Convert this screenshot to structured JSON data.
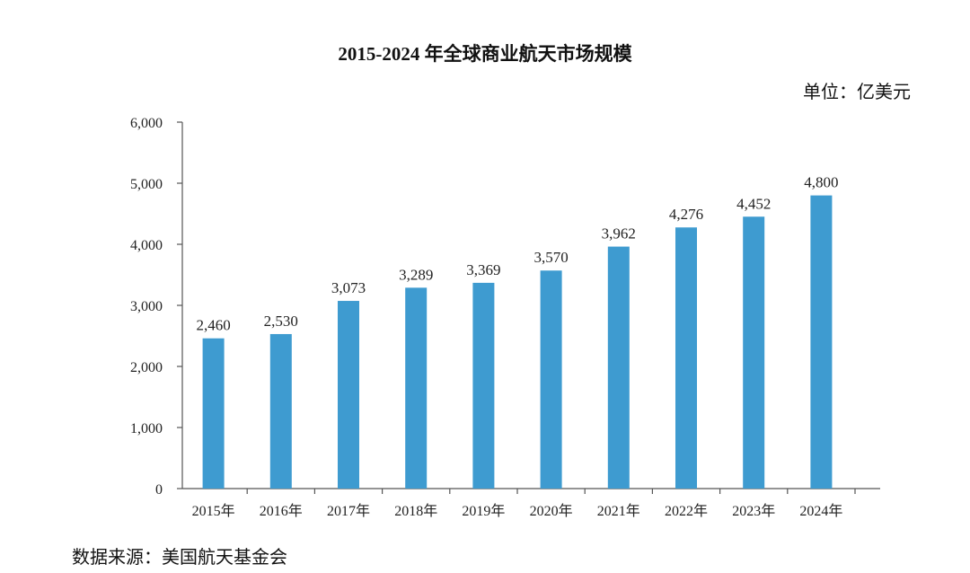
{
  "chart_data": {
    "type": "bar",
    "title": "2015-2024 年全球商业航天市场规模",
    "unit_label": "单位：亿美元",
    "source_label": "数据来源：美国航天基金会",
    "categories": [
      "2015年",
      "2016年",
      "2017年",
      "2018年",
      "2019年",
      "2020年",
      "2021年",
      "2022年",
      "2023年",
      "2024年"
    ],
    "values": [
      2460,
      2530,
      3073,
      3289,
      3369,
      3570,
      3962,
      4276,
      4452,
      4800
    ],
    "value_labels": [
      "2,460",
      "2,530",
      "3,073",
      "3,289",
      "3,369",
      "3,570",
      "3,962",
      "4,276",
      "4,452",
      "4,800"
    ],
    "yticks": [
      0,
      1000,
      2000,
      3000,
      4000,
      5000,
      6000
    ],
    "ytick_labels": [
      "0",
      "1,000",
      "2,000",
      "3,000",
      "4,000",
      "5,000",
      "6,000"
    ],
    "ylim": [
      0,
      6000
    ],
    "xlabel": "",
    "ylabel": "",
    "grid": false,
    "legend": "none",
    "bar_color": "#3e9bd0",
    "axis_color": "#555555"
  }
}
